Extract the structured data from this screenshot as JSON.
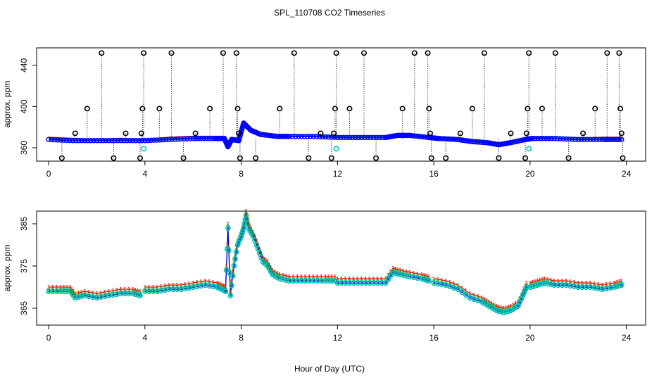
{
  "figure": {
    "title": "SPL_110708  CO2 Timeseries",
    "xlabel": "Hour of Day (UTC)"
  },
  "colors": {
    "red": "#ff0000",
    "green": "#00cc00",
    "blue": "#0000ff",
    "cyan": "#00cccc",
    "black": "#000000"
  },
  "chart_data": [
    {
      "type": "scatter",
      "panel": "top",
      "title": "SPL_110708  CO2 Timeseries",
      "xlabel": "",
      "ylabel": "approx. ppm",
      "xlim": [
        -0.5,
        24.8
      ],
      "ylim": [
        347,
        457
      ],
      "xticks": [
        0,
        4,
        8,
        12,
        16,
        20,
        24
      ],
      "yticks": [
        360,
        400,
        440
      ],
      "grid": false,
      "legend": "none",
      "baseline_series": [
        {
          "name": "red",
          "x": [
            0,
            1,
            2,
            3,
            4,
            5,
            6,
            6.9,
            7.3,
            7.45,
            7.6,
            7.9,
            8.1,
            8.4,
            8.8,
            9.5,
            10,
            11,
            12,
            13,
            14,
            14.5,
            15,
            15.8,
            16.2,
            17,
            17.6,
            18.2,
            18.7,
            19.2,
            19.8,
            20.1,
            21,
            22,
            23,
            23.8
          ],
          "y": [
            370,
            369,
            368,
            369,
            368,
            370,
            371,
            371,
            371,
            362,
            370,
            369,
            385,
            378,
            374,
            372,
            372,
            372,
            371,
            371,
            371,
            373,
            373,
            371,
            370,
            369,
            367,
            366,
            364,
            366,
            369,
            370,
            370,
            369,
            370,
            370
          ]
        },
        {
          "name": "green",
          "x": [
            0,
            1,
            2,
            3,
            4,
            5,
            6,
            6.9,
            7.3,
            7.45,
            7.6,
            7.9,
            8.1,
            8.4,
            8.8,
            9.5,
            10,
            11,
            12,
            13,
            14,
            14.5,
            15,
            15.8,
            16.2,
            17,
            17.6,
            18.2,
            18.7,
            19.2,
            19.8,
            20.1,
            21,
            22,
            23,
            23.8
          ],
          "y": [
            369,
            368,
            368,
            368,
            368,
            369,
            370,
            370,
            370,
            362,
            369,
            368,
            384,
            378,
            374,
            372,
            372,
            372,
            371,
            371,
            371,
            373,
            373,
            371,
            370,
            369,
            367,
            366,
            364,
            366,
            369,
            370,
            370,
            369,
            369,
            369
          ]
        },
        {
          "name": "blue",
          "x": [
            0,
            1,
            2,
            3,
            4,
            5,
            6,
            6.9,
            7.3,
            7.45,
            7.6,
            7.9,
            8.1,
            8.4,
            8.8,
            9.5,
            10,
            11,
            12,
            13,
            14,
            14.5,
            15,
            15.8,
            16.2,
            17,
            17.6,
            18.2,
            18.7,
            19.2,
            19.8,
            20.1,
            21,
            22,
            23,
            23.8
          ],
          "y": [
            368,
            367,
            367,
            367,
            367,
            368,
            369,
            369,
            369,
            361,
            368,
            367,
            384,
            377,
            373,
            371,
            371,
            371,
            370,
            370,
            370,
            372,
            372,
            370,
            369,
            368,
            366,
            365,
            363,
            365,
            368,
            369,
            369,
            368,
            368,
            368
          ]
        }
      ],
      "cyan_points": {
        "x": [
          3.95,
          11.95,
          19.95
        ],
        "y": [
          359,
          359,
          359
        ]
      },
      "spikes": [
        {
          "x": 0.55,
          "y": 350
        },
        {
          "x": 1.1,
          "y": 374
        },
        {
          "x": 1.6,
          "y": 398
        },
        {
          "x": 2.2,
          "y": 452
        },
        {
          "x": 2.7,
          "y": 350
        },
        {
          "x": 3.2,
          "y": 374
        },
        {
          "x": 3.8,
          "y": 350
        },
        {
          "x": 3.85,
          "y": 374
        },
        {
          "x": 3.9,
          "y": 398
        },
        {
          "x": 3.95,
          "y": 452
        },
        {
          "x": 4.6,
          "y": 398
        },
        {
          "x": 5.1,
          "y": 452
        },
        {
          "x": 5.6,
          "y": 350
        },
        {
          "x": 6.1,
          "y": 374
        },
        {
          "x": 6.7,
          "y": 398
        },
        {
          "x": 7.25,
          "y": 452
        },
        {
          "x": 7.8,
          "y": 452
        },
        {
          "x": 7.85,
          "y": 398
        },
        {
          "x": 7.9,
          "y": 374
        },
        {
          "x": 7.95,
          "y": 350
        },
        {
          "x": 8.6,
          "y": 350
        },
        {
          "x": 9.6,
          "y": 398
        },
        {
          "x": 10.2,
          "y": 452
        },
        {
          "x": 10.8,
          "y": 350
        },
        {
          "x": 11.3,
          "y": 374
        },
        {
          "x": 11.75,
          "y": 350
        },
        {
          "x": 11.85,
          "y": 374
        },
        {
          "x": 11.9,
          "y": 398
        },
        {
          "x": 11.95,
          "y": 452
        },
        {
          "x": 12.5,
          "y": 398
        },
        {
          "x": 13.1,
          "y": 452
        },
        {
          "x": 13.6,
          "y": 350
        },
        {
          "x": 14.7,
          "y": 398
        },
        {
          "x": 15.2,
          "y": 452
        },
        {
          "x": 15.75,
          "y": 452
        },
        {
          "x": 15.8,
          "y": 398
        },
        {
          "x": 15.85,
          "y": 374
        },
        {
          "x": 15.9,
          "y": 350
        },
        {
          "x": 16.5,
          "y": 350
        },
        {
          "x": 17.1,
          "y": 374
        },
        {
          "x": 17.6,
          "y": 398
        },
        {
          "x": 18.1,
          "y": 452
        },
        {
          "x": 18.7,
          "y": 350
        },
        {
          "x": 19.2,
          "y": 374
        },
        {
          "x": 19.8,
          "y": 350
        },
        {
          "x": 19.85,
          "y": 374
        },
        {
          "x": 19.9,
          "y": 398
        },
        {
          "x": 19.95,
          "y": 452
        },
        {
          "x": 20.5,
          "y": 398
        },
        {
          "x": 21.05,
          "y": 452
        },
        {
          "x": 21.6,
          "y": 350
        },
        {
          "x": 22.2,
          "y": 374
        },
        {
          "x": 22.7,
          "y": 398
        },
        {
          "x": 23.2,
          "y": 452
        },
        {
          "x": 23.7,
          "y": 452
        },
        {
          "x": 23.75,
          "y": 398
        },
        {
          "x": 23.8,
          "y": 374
        },
        {
          "x": 23.85,
          "y": 350
        }
      ]
    },
    {
      "type": "line",
      "panel": "bottom",
      "xlabel": "Hour of Day (UTC)",
      "ylabel": "approx. ppm",
      "xlim": [
        -0.5,
        24.8
      ],
      "ylim": [
        361,
        388
      ],
      "xticks": [
        0,
        4,
        8,
        12,
        16,
        20,
        24
      ],
      "yticks": [
        365,
        375,
        385
      ],
      "grid": false,
      "legend": "none",
      "markers": {
        "series1": "1",
        "series2": "2",
        "series3": "3",
        "circle": "o"
      },
      "segments": [
        {
          "x": [
            0,
            0.5,
            0.9,
            1.1,
            1.5,
            2.0,
            2.5,
            3.0,
            3.5,
            3.8
          ],
          "y": [
            369,
            369,
            369,
            367.5,
            368,
            367.5,
            368,
            368.5,
            368.5,
            368
          ]
        },
        {
          "x": [
            4.0,
            4.5,
            5.0,
            5.5,
            6.0,
            6.5,
            7.0,
            7.2,
            7.35,
            7.45,
            7.55,
            7.7,
            7.85,
            8.0,
            8.1,
            8.2,
            8.3,
            8.5,
            8.7,
            8.9,
            9.1,
            9.3,
            9.6,
            10.0,
            10.5,
            11.0,
            11.5,
            11.9
          ],
          "y": [
            369,
            369,
            369.5,
            369.5,
            370,
            370.5,
            370,
            369.5,
            369,
            384,
            368,
            375,
            380,
            382,
            384,
            387,
            384,
            382,
            379,
            376,
            375,
            373,
            372,
            371.5,
            371.5,
            371.5,
            371.5,
            371.5
          ]
        },
        {
          "x": [
            12.0,
            12.5,
            13.0,
            13.5,
            14.0,
            14.3,
            14.6,
            15.0,
            15.5,
            15.8
          ],
          "y": [
            371,
            371,
            371,
            371,
            371,
            373.5,
            373,
            372.5,
            372,
            371.5
          ]
        },
        {
          "x": [
            16.0,
            16.5,
            17.0,
            17.5,
            18.0,
            18.3,
            18.6,
            18.9,
            19.2,
            19.5,
            19.7,
            19.85
          ],
          "y": [
            371,
            370.5,
            369.5,
            367.5,
            366.5,
            365.5,
            364.5,
            364,
            364.5,
            365.5,
            368,
            370
          ]
        },
        {
          "x": [
            20.0,
            20.3,
            20.6,
            21.0,
            21.5,
            22.0,
            22.5,
            23.0,
            23.5,
            23.8
          ],
          "y": [
            370,
            370.5,
            371,
            370.5,
            370.5,
            370,
            370,
            369.5,
            370,
            370.5
          ]
        }
      ]
    }
  ]
}
